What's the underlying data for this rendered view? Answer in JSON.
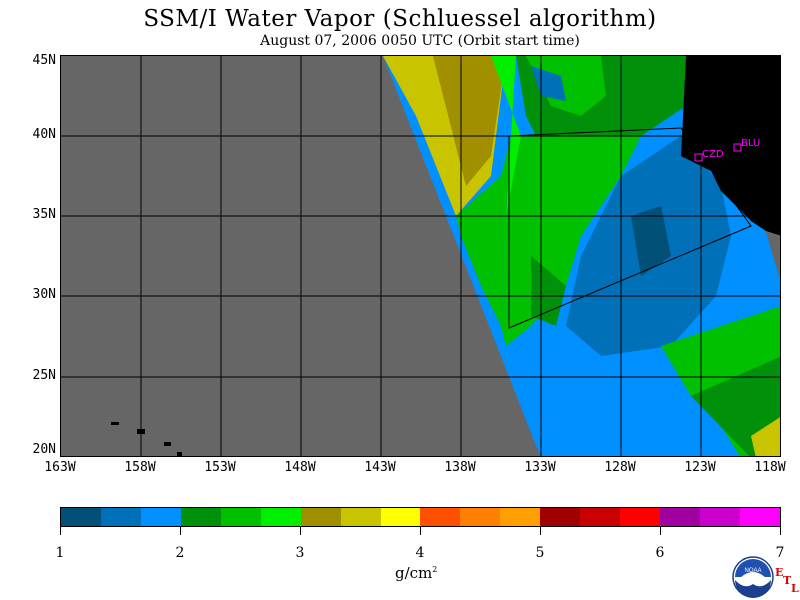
{
  "header": {
    "title": "SSM/I Water Vapor (Schluessel algorithm)",
    "subtitle": "August 07, 2006  0050 UTC  (Orbit start time)"
  },
  "map": {
    "latitude_labels": [
      "45N",
      "40N",
      "35N",
      "30N",
      "25N",
      "20N"
    ],
    "longitude_labels": [
      "163W",
      "158W",
      "153W",
      "148W",
      "143W",
      "138W",
      "133W",
      "128W",
      "123W",
      "118W"
    ],
    "stations": [
      {
        "id": "CZD",
        "label": "CZD"
      },
      {
        "id": "BLU",
        "label": "BLU"
      }
    ],
    "colors": {
      "no_data": "#666666",
      "land": "#000000",
      "station": "#ff00ff",
      "grid": "#000000"
    }
  },
  "colorbar": {
    "colors": [
      "#005078",
      "#0070b8",
      "#0090ff",
      "#00900a",
      "#00c000",
      "#00ee00",
      "#a09000",
      "#c8c400",
      "#ffff00",
      "#ff5000",
      "#ff8000",
      "#ffa000",
      "#a00000",
      "#c80000",
      "#ff0000",
      "#a000a0",
      "#cc00cc",
      "#ff00ff"
    ],
    "tick_labels": [
      "1",
      "2",
      "3",
      "4",
      "5",
      "6",
      "7"
    ],
    "units": "g/cm",
    "units_exponent": "2"
  },
  "logo": {
    "name": "noaa-logo",
    "text": "NOAA",
    "etl_letters": [
      "E",
      "T",
      "L"
    ]
  }
}
